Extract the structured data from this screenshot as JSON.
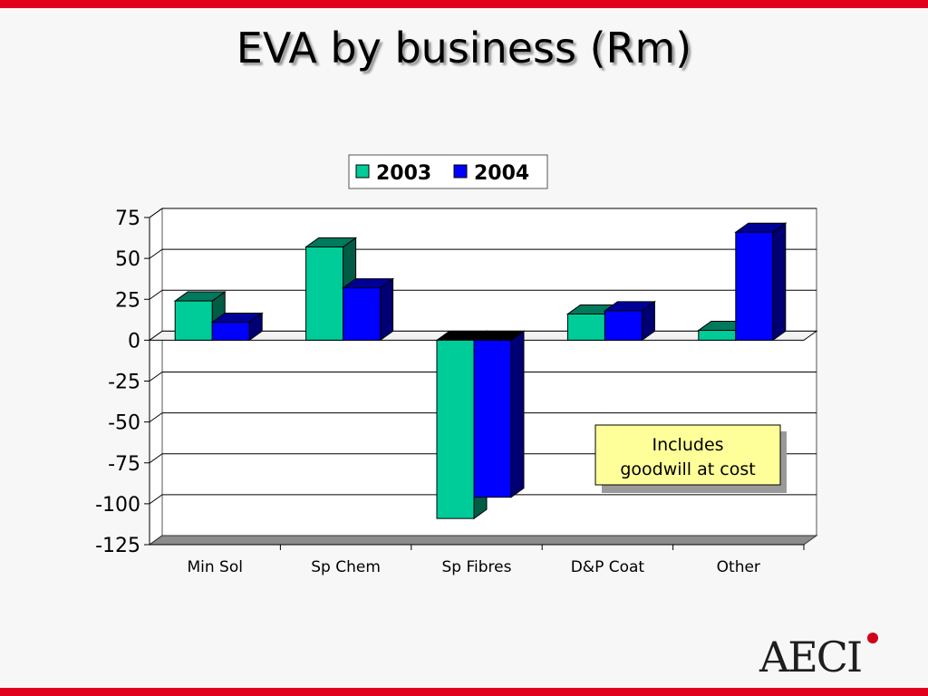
{
  "slide": {
    "title": "EVA by business (Rm)",
    "logo": "AECI",
    "accent_color": "#e0001b"
  },
  "chart_data": {
    "type": "bar",
    "title": "",
    "xlabel": "",
    "ylabel": "",
    "categories": [
      "Min Sol",
      "Sp Chem",
      "Sp Fibres",
      "D&P Coat",
      "Other"
    ],
    "series": [
      {
        "name": "2003",
        "color": "#00cc99",
        "values": [
          24,
          57,
          -109,
          16,
          6
        ]
      },
      {
        "name": "2004",
        "color": "#0000ff",
        "values": [
          11,
          32,
          -96,
          18,
          66
        ]
      }
    ],
    "ylim": [
      -125,
      75
    ],
    "yticks": [
      75,
      50,
      25,
      0,
      -25,
      -50,
      -75,
      -100,
      -125
    ],
    "grid": true,
    "legend": "top-center",
    "annotation": {
      "lines": [
        "Includes",
        "goodwill at cost"
      ],
      "points_to": "Sp Fibres"
    }
  }
}
